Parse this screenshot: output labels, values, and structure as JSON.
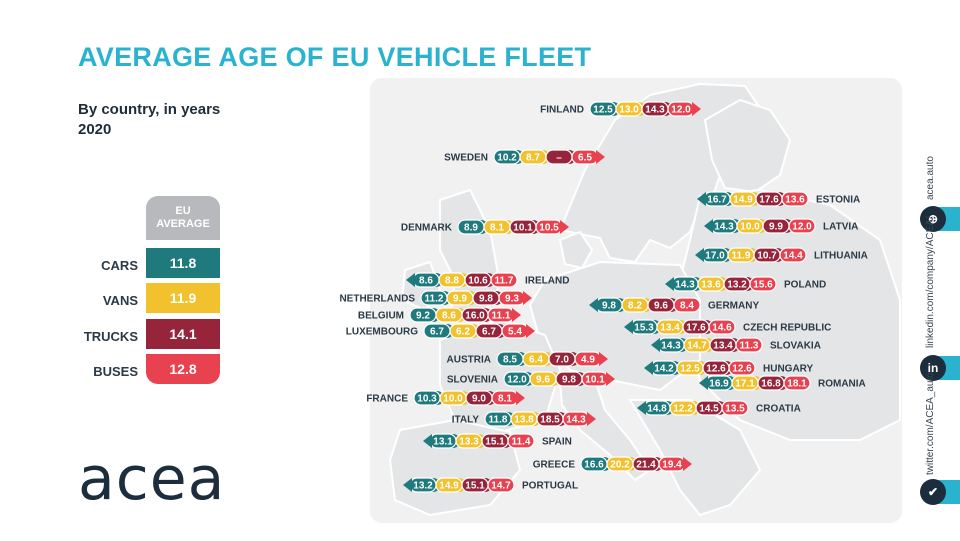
{
  "title": "AVERAGE AGE OF EU VEHICLE FLEET",
  "subtitle": "By country, in years",
  "year": "2020",
  "legend": {
    "header": [
      "EU",
      "AVERAGE"
    ],
    "items": [
      {
        "label": "CARS",
        "value": "11.8",
        "color": "#1f7a7e"
      },
      {
        "label": "VANS",
        "value": "11.9",
        "color": "#f2c22e"
      },
      {
        "label": "TRUCKS",
        "value": "14.1",
        "color": "#96243b"
      },
      {
        "label": "BUSES",
        "value": "12.8",
        "color": "#e8414f"
      }
    ]
  },
  "colors": {
    "cars": "#1f7a7e",
    "vans": "#f2c22e",
    "trucks": "#96243b",
    "buses": "#e8414f",
    "accent": "#2ab3cf",
    "map_land": "#e4e5e6",
    "map_border": "#ffffff"
  },
  "countries": [
    {
      "name": "FINLAND",
      "values": [
        "12.5",
        "13.0",
        "14.3",
        "12.0"
      ]
    },
    {
      "name": "SWEDEN",
      "values": [
        "10.2",
        "8.7",
        "–",
        "6.5"
      ]
    },
    {
      "name": "ESTONIA",
      "values": [
        "16.7",
        "14.9",
        "17.6",
        "13.6"
      ]
    },
    {
      "name": "LATVIA",
      "values": [
        "14.3",
        "10.0",
        "9.9",
        "12.0"
      ]
    },
    {
      "name": "DENMARK",
      "values": [
        "8.9",
        "8.1",
        "10.1",
        "10.5"
      ]
    },
    {
      "name": "LITHUANIA",
      "values": [
        "17.0",
        "11.9",
        "10.7",
        "14.4"
      ]
    },
    {
      "name": "IRELAND",
      "values": [
        "8.6",
        "8.8",
        "10.6",
        "11.7"
      ]
    },
    {
      "name": "POLAND",
      "values": [
        "14.3",
        "13.6",
        "13.2",
        "15.6"
      ]
    },
    {
      "name": "NETHERLANDS",
      "values": [
        "11.2",
        "9.9",
        "9.8",
        "9.3"
      ]
    },
    {
      "name": "GERMANY",
      "values": [
        "9.8",
        "8.2",
        "9.6",
        "8.4"
      ]
    },
    {
      "name": "BELGIUM",
      "values": [
        "9.2",
        "8.6",
        "16.0",
        "11.1"
      ]
    },
    {
      "name": "LUXEMBOURG",
      "values": [
        "6.7",
        "6.2",
        "6.7",
        "5.4"
      ]
    },
    {
      "name": "CZECH REPUBLIC",
      "values": [
        "15.3",
        "13.4",
        "17.6",
        "14.6"
      ]
    },
    {
      "name": "SLOVAKIA",
      "values": [
        "14.3",
        "14.7",
        "13.4",
        "11.3"
      ]
    },
    {
      "name": "AUSTRIA",
      "values": [
        "8.5",
        "6.4",
        "7.0",
        "4.9"
      ]
    },
    {
      "name": "HUNGARY",
      "values": [
        "14.2",
        "12.5",
        "12.6",
        "12.6"
      ]
    },
    {
      "name": "SLOVENIA",
      "values": [
        "12.0",
        "9.6",
        "9.8",
        "10.1"
      ]
    },
    {
      "name": "ROMANIA",
      "values": [
        "16.9",
        "17.1",
        "16.8",
        "18.1"
      ]
    },
    {
      "name": "FRANCE",
      "values": [
        "10.3",
        "10.0",
        "9.0",
        "8.1"
      ]
    },
    {
      "name": "CROATIA",
      "values": [
        "14.8",
        "12.2",
        "14.5",
        "13.5"
      ]
    },
    {
      "name": "ITALY",
      "values": [
        "11.8",
        "13.8",
        "18.5",
        "14.3"
      ]
    },
    {
      "name": "SPAIN",
      "values": [
        "13.1",
        "13.3",
        "15.1",
        "11.4"
      ]
    },
    {
      "name": "GREECE",
      "values": [
        "16.6",
        "20.2",
        "21.4",
        "19.4"
      ]
    },
    {
      "name": "PORTUGAL",
      "values": [
        "13.2",
        "14.9",
        "15.1",
        "14.7"
      ]
    }
  ],
  "logo": "acea",
  "social": [
    {
      "text": "acea.auto",
      "icon": "globe-icon",
      "glyph": "⊕"
    },
    {
      "text": "linkedin.com/company/ACEA/",
      "icon": "linkedin-icon",
      "glyph": "in"
    },
    {
      "text": "twitter.com/ACEA_auto",
      "icon": "twitter-icon",
      "glyph": "✔"
    }
  ]
}
